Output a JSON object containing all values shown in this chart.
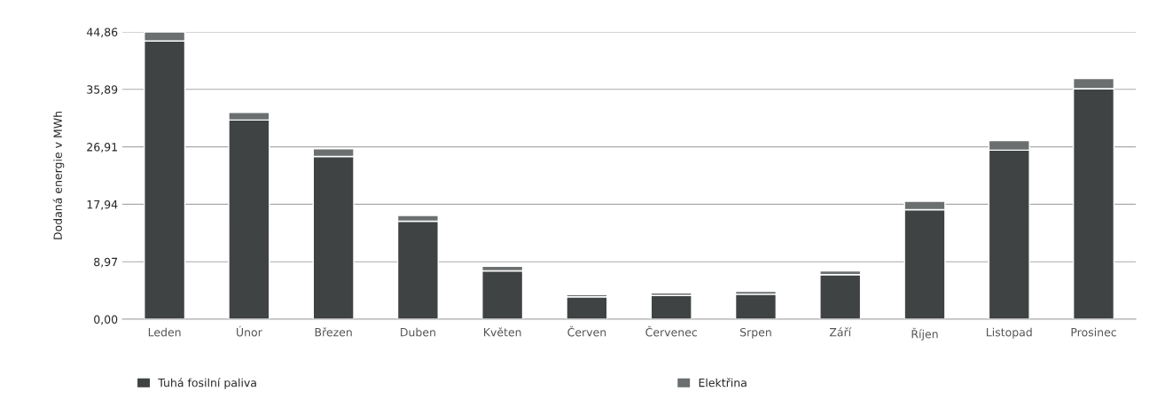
{
  "chart_data": {
    "type": "bar",
    "stacked": true,
    "ylabel": "Dodaná energie v MWh",
    "categories": [
      "Leden",
      "Únor",
      "Březen",
      "Duben",
      "Květen",
      "Červen",
      "Červenec",
      "Srpen",
      "Září",
      "Říjen",
      "Listopad",
      "Prosinec"
    ],
    "series": [
      {
        "name": "Tuhá fosilní paliva",
        "color": "#3f4344",
        "values": [
          43.45,
          31.1,
          25.4,
          15.3,
          7.55,
          3.5,
          3.7,
          3.9,
          6.95,
          17.1,
          26.4,
          36.0
        ]
      },
      {
        "name": "Elektřina",
        "color": "#6b6f70",
        "values": [
          1.41,
          1.2,
          1.2,
          0.9,
          0.7,
          0.35,
          0.4,
          0.45,
          0.6,
          1.3,
          1.5,
          1.6
        ]
      }
    ],
    "ylim": [
      0,
      44.86
    ],
    "yticks": [
      {
        "value": 0,
        "label": "0,00"
      },
      {
        "value": 8.97,
        "label": "8,97"
      },
      {
        "value": 17.94,
        "label": "17,94"
      },
      {
        "value": 26.91,
        "label": "26,91"
      },
      {
        "value": 35.89,
        "label": "35,89"
      },
      {
        "value": 44.86,
        "label": "44,86"
      }
    ],
    "grid": "y",
    "legend": "bottom"
  }
}
